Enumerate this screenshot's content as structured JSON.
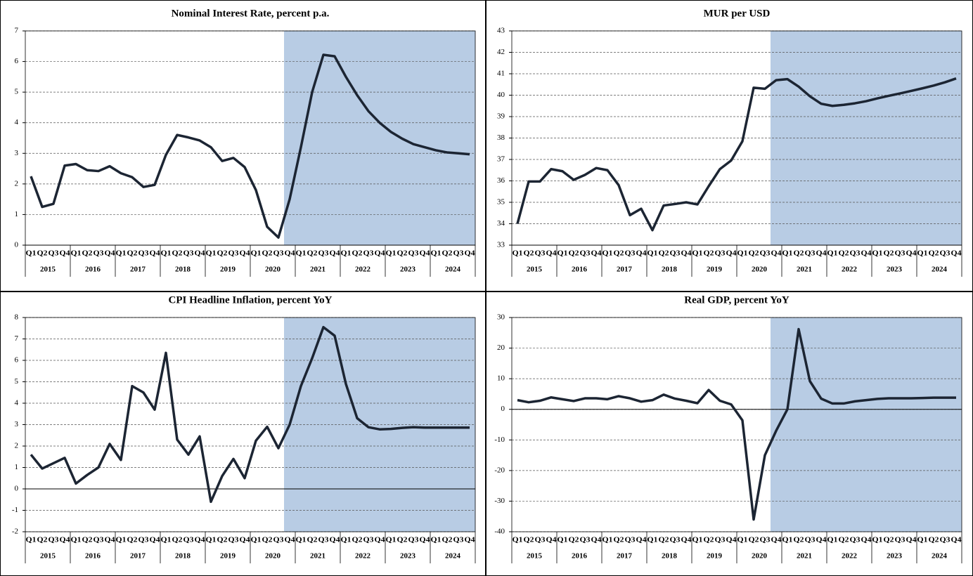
{
  "chart_data": [
    {
      "type": "line",
      "title": "Nominal Interest Rate, percent p.a.",
      "categories": [
        "Q1",
        "Q2",
        "Q3",
        "Q4",
        "Q1",
        "Q2",
        "Q3",
        "Q4",
        "Q1",
        "Q2",
        "Q3",
        "Q4",
        "Q1",
        "Q2",
        "Q3",
        "Q4",
        "Q1",
        "Q2",
        "Q3",
        "Q4",
        "Q1",
        "Q2",
        "Q3",
        "Q4",
        "Q1",
        "Q2",
        "Q3",
        "Q4",
        "Q1",
        "Q2",
        "Q3",
        "Q4",
        "Q1",
        "Q2",
        "Q3",
        "Q4",
        "Q1",
        "Q2",
        "Q3",
        "Q4"
      ],
      "category_groups": [
        "2015",
        "2016",
        "2017",
        "2018",
        "2019",
        "2020",
        "2021",
        "2022",
        "2023",
        "2024"
      ],
      "values": [
        2.25,
        1.25,
        1.35,
        2.6,
        2.65,
        2.45,
        2.42,
        2.58,
        2.35,
        2.22,
        1.9,
        1.97,
        2.95,
        3.6,
        3.52,
        3.42,
        3.2,
        2.75,
        2.85,
        2.55,
        1.8,
        0.6,
        0.25,
        1.5,
        3.2,
        5.0,
        6.22,
        6.17,
        5.5,
        4.9,
        4.38,
        4.0,
        3.7,
        3.48,
        3.3,
        3.2,
        3.1,
        3.03,
        3.0,
        2.97
      ],
      "color": "#1c2533",
      "ylim": [
        0,
        7
      ],
      "yticks": [
        0,
        1,
        2,
        3,
        4,
        5,
        6,
        7
      ],
      "grid": true,
      "shade": {
        "from": 23,
        "color": "#b8cce4"
      }
    },
    {
      "type": "line",
      "title": "MUR per USD",
      "categories": [
        "Q1",
        "Q2",
        "Q3",
        "Q4",
        "Q1",
        "Q2",
        "Q3",
        "Q4",
        "Q1",
        "Q2",
        "Q3",
        "Q4",
        "Q1",
        "Q2",
        "Q3",
        "Q4",
        "Q1",
        "Q2",
        "Q3",
        "Q4",
        "Q1",
        "Q2",
        "Q3",
        "Q4",
        "Q1",
        "Q2",
        "Q3",
        "Q4",
        "Q1",
        "Q2",
        "Q3",
        "Q4",
        "Q1",
        "Q2",
        "Q3",
        "Q4",
        "Q1",
        "Q2",
        "Q3",
        "Q4"
      ],
      "category_groups": [
        "2015",
        "2016",
        "2017",
        "2018",
        "2019",
        "2020",
        "2021",
        "2022",
        "2023",
        "2024"
      ],
      "values": [
        34.0,
        35.97,
        35.97,
        36.55,
        36.45,
        36.05,
        36.28,
        36.6,
        36.5,
        35.8,
        34.4,
        34.7,
        33.7,
        34.85,
        34.92,
        35.0,
        34.9,
        35.75,
        36.55,
        36.95,
        37.85,
        40.35,
        40.3,
        40.7,
        40.75,
        40.4,
        39.95,
        39.6,
        39.5,
        39.55,
        39.62,
        39.72,
        39.85,
        39.97,
        40.08,
        40.2,
        40.32,
        40.45,
        40.6,
        40.78
      ],
      "color": "#1c2533",
      "ylim": [
        33,
        43
      ],
      "yticks": [
        33,
        34,
        35,
        36,
        37,
        38,
        39,
        40,
        41,
        42,
        43
      ],
      "grid": true,
      "shade": {
        "from": 23,
        "color": "#b8cce4"
      }
    },
    {
      "type": "line",
      "title": "CPI Headline Inflation, percent YoY",
      "categories": [
        "Q1",
        "Q2",
        "Q3",
        "Q4",
        "Q1",
        "Q2",
        "Q3",
        "Q4",
        "Q1",
        "Q2",
        "Q3",
        "Q4",
        "Q1",
        "Q2",
        "Q3",
        "Q4",
        "Q1",
        "Q2",
        "Q3",
        "Q4",
        "Q1",
        "Q2",
        "Q3",
        "Q4",
        "Q1",
        "Q2",
        "Q3",
        "Q4",
        "Q1",
        "Q2",
        "Q3",
        "Q4",
        "Q1",
        "Q2",
        "Q3",
        "Q4",
        "Q1",
        "Q2",
        "Q3",
        "Q4"
      ],
      "category_groups": [
        "2015",
        "2016",
        "2017",
        "2018",
        "2019",
        "2020",
        "2021",
        "2022",
        "2023",
        "2024"
      ],
      "values": [
        1.6,
        0.95,
        1.2,
        1.45,
        0.25,
        0.65,
        1.0,
        2.1,
        1.35,
        4.8,
        4.5,
        3.7,
        6.35,
        2.3,
        1.6,
        2.45,
        -0.6,
        0.6,
        1.4,
        0.5,
        2.25,
        2.9,
        1.9,
        3.0,
        4.8,
        6.1,
        7.55,
        7.15,
        4.9,
        3.3,
        2.88,
        2.78,
        2.8,
        2.85,
        2.88,
        2.86,
        2.86,
        2.86,
        2.86,
        2.86
      ],
      "color": "#1c2533",
      "ylim": [
        -2,
        8
      ],
      "yticks": [
        -2,
        -1,
        0,
        1,
        2,
        3,
        4,
        5,
        6,
        7,
        8
      ],
      "grid": true,
      "shade": {
        "from": 23,
        "color": "#b8cce4"
      }
    },
    {
      "type": "line",
      "title": "Real GDP, percent YoY",
      "categories": [
        "Q1",
        "Q2",
        "Q3",
        "Q4",
        "Q1",
        "Q2",
        "Q3",
        "Q4",
        "Q1",
        "Q2",
        "Q3",
        "Q4",
        "Q1",
        "Q2",
        "Q3",
        "Q4",
        "Q1",
        "Q2",
        "Q3",
        "Q4",
        "Q1",
        "Q2",
        "Q3",
        "Q4",
        "Q1",
        "Q2",
        "Q3",
        "Q4",
        "Q1",
        "Q2",
        "Q3",
        "Q4",
        "Q1",
        "Q2",
        "Q3",
        "Q4",
        "Q1",
        "Q2",
        "Q3",
        "Q4"
      ],
      "category_groups": [
        "2015",
        "2016",
        "2017",
        "2018",
        "2019",
        "2020",
        "2021",
        "2022",
        "2023",
        "2024"
      ],
      "values": [
        3.0,
        2.3,
        2.8,
        3.9,
        3.3,
        2.7,
        3.6,
        3.6,
        3.3,
        4.3,
        3.6,
        2.5,
        3.0,
        4.8,
        3.5,
        2.8,
        2.0,
        6.3,
        2.8,
        1.6,
        -3.6,
        -36.0,
        -15.0,
        -7.0,
        0.0,
        26.2,
        9.2,
        3.5,
        1.9,
        1.9,
        2.6,
        3.0,
        3.4,
        3.6,
        3.6,
        3.6,
        3.7,
        3.8,
        3.8,
        3.8
      ],
      "color": "#1c2533",
      "ylim": [
        -40,
        30
      ],
      "yticks": [
        -40,
        -30,
        -20,
        -10,
        0,
        10,
        20,
        30
      ],
      "grid": true,
      "shade": {
        "from": 23,
        "color": "#b8cce4"
      }
    }
  ]
}
